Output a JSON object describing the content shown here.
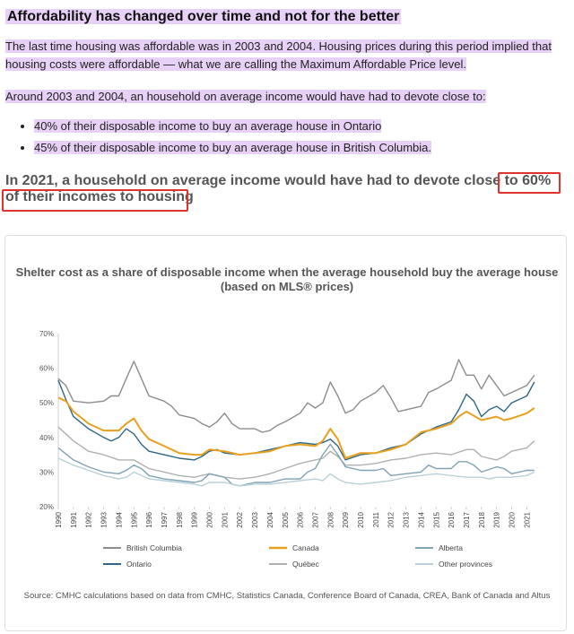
{
  "article": {
    "heading": "Affordability has changed over time and not for the better",
    "paragraph1": "The last time housing was affordable was in 2003 and 2004. Housing prices during this period implied that housing costs were affordable — what we are calling the Maximum Affordable Price level.",
    "paragraph2": "Around 2003 and 2004, an household on average income would have had to devote close to:",
    "bullets": [
      "40% of their disposable income to buy an average house in Ontario",
      "45% of their disposable income to buy an average house in British Columbia."
    ],
    "highlight_statement": "In 2021, a household on average income would have had to devote close to 60% of their incomes to housing"
  },
  "colors": {
    "highlight": "#e7d1f7",
    "annotation_box": "#e0332e"
  },
  "chart_data": {
    "type": "line",
    "title": "Shelter cost as a share of disposable income when the average household buy the average house (based on MLS® prices)",
    "xlabel": "",
    "ylabel": "",
    "x_range": [
      1990,
      2021.75
    ],
    "ylim": [
      20,
      70
    ],
    "y_ticks": [
      "20%",
      "30%",
      "40%",
      "50%",
      "60%",
      "70%"
    ],
    "x_ticks": [
      "1990",
      "1991",
      "1992",
      "1993",
      "1994",
      "1995",
      "1996",
      "1997",
      "1998",
      "1999",
      "2000",
      "2001",
      "2002",
      "2003",
      "2004",
      "2005",
      "2006",
      "2007",
      "2008",
      "2009",
      "2010",
      "2011",
      "2012",
      "2013",
      "2014",
      "2015",
      "2016",
      "2017",
      "2018",
      "2019",
      "2020",
      "2021"
    ],
    "grid": false,
    "legend_position": "bottom",
    "source": "Source: CMHC calculations based on data from CMHC, Statistics Canada, Conference Board of Canada, CREA, Bank of Canada and Altus",
    "series": [
      {
        "name": "British Columbia",
        "color": "#8c8c8c",
        "points": [
          [
            1990,
            57
          ],
          [
            1990.5,
            55
          ],
          [
            1991,
            50.5
          ],
          [
            1992,
            50
          ],
          [
            1993,
            50.5
          ],
          [
            1993.5,
            52
          ],
          [
            1994,
            52
          ],
          [
            1994.5,
            57
          ],
          [
            1995,
            62
          ],
          [
            1995.5,
            57
          ],
          [
            1996,
            52
          ],
          [
            1997,
            50.5
          ],
          [
            1997.5,
            49
          ],
          [
            1998,
            46.5
          ],
          [
            1999,
            45.5
          ],
          [
            1999.5,
            44
          ],
          [
            2000,
            43
          ],
          [
            2000.5,
            44.5
          ],
          [
            2001,
            47
          ],
          [
            2001.5,
            44
          ],
          [
            2002,
            42.5
          ],
          [
            2003,
            42.5
          ],
          [
            2003.5,
            41.5
          ],
          [
            2004,
            42
          ],
          [
            2004.5,
            43.5
          ],
          [
            2005,
            44.5
          ],
          [
            2006,
            47
          ],
          [
            2006.5,
            50
          ],
          [
            2007,
            48.5
          ],
          [
            2007.5,
            50
          ],
          [
            2008,
            56
          ],
          [
            2008.5,
            52
          ],
          [
            2009,
            47
          ],
          [
            2009.5,
            48
          ],
          [
            2010,
            50.5
          ],
          [
            2011,
            53
          ],
          [
            2011.5,
            55
          ],
          [
            2012,
            51.5
          ],
          [
            2012.5,
            47.5
          ],
          [
            2013,
            48
          ],
          [
            2014,
            49
          ],
          [
            2014.5,
            53
          ],
          [
            2015,
            54
          ],
          [
            2016,
            56.5
          ],
          [
            2016.5,
            62.5
          ],
          [
            2017,
            58
          ],
          [
            2017.5,
            58
          ],
          [
            2018,
            54
          ],
          [
            2018.5,
            58
          ],
          [
            2019,
            55
          ],
          [
            2019.5,
            52
          ],
          [
            2020,
            53
          ],
          [
            2021,
            55
          ],
          [
            2021.5,
            58
          ]
        ]
      },
      {
        "name": "Ontario",
        "color": "#2e6683",
        "points": [
          [
            1990,
            56.5
          ],
          [
            1990.5,
            51
          ],
          [
            1991,
            46
          ],
          [
            1992,
            42.5
          ],
          [
            1993,
            40
          ],
          [
            1993.5,
            39
          ],
          [
            1994,
            40
          ],
          [
            1994.5,
            42.5
          ],
          [
            1995,
            41
          ],
          [
            1995.5,
            38
          ],
          [
            1996,
            36
          ],
          [
            1997,
            35
          ],
          [
            1998,
            34
          ],
          [
            1999,
            33.5
          ],
          [
            1999.5,
            34.5
          ],
          [
            2000,
            36
          ],
          [
            2000.5,
            36.5
          ],
          [
            2001,
            35.5
          ],
          [
            2002,
            35
          ],
          [
            2003,
            35.5
          ],
          [
            2004,
            36.5
          ],
          [
            2005,
            37.5
          ],
          [
            2006,
            38.5
          ],
          [
            2007,
            38
          ],
          [
            2007.5,
            38.5
          ],
          [
            2008,
            39.5
          ],
          [
            2008.5,
            37.5
          ],
          [
            2009,
            33.5
          ],
          [
            2010,
            35
          ],
          [
            2011,
            35.5
          ],
          [
            2012,
            37
          ],
          [
            2013,
            38
          ],
          [
            2014,
            41
          ],
          [
            2015,
            43
          ],
          [
            2016,
            44.5
          ],
          [
            2016.5,
            48
          ],
          [
            2017,
            52.5
          ],
          [
            2017.5,
            50.5
          ],
          [
            2018,
            46
          ],
          [
            2018.5,
            48
          ],
          [
            2019,
            49
          ],
          [
            2019.5,
            47.5
          ],
          [
            2020,
            50
          ],
          [
            2021,
            52
          ],
          [
            2021.5,
            56
          ]
        ]
      },
      {
        "name": "Canada",
        "color": "#e8a01e",
        "points": [
          [
            1990,
            51.5
          ],
          [
            1990.5,
            50.5
          ],
          [
            1991,
            47.5
          ],
          [
            1992,
            44
          ],
          [
            1993,
            42
          ],
          [
            1994,
            42
          ],
          [
            1994.5,
            44
          ],
          [
            1995,
            45.5
          ],
          [
            1995.5,
            42
          ],
          [
            1996,
            39.5
          ],
          [
            1997,
            37.5
          ],
          [
            1998,
            35.5
          ],
          [
            1999,
            35
          ],
          [
            1999.5,
            35
          ],
          [
            2000,
            36.5
          ],
          [
            2001,
            36
          ],
          [
            2002,
            35
          ],
          [
            2003,
            35.5
          ],
          [
            2004,
            36
          ],
          [
            2005,
            37.5
          ],
          [
            2006,
            38
          ],
          [
            2007,
            37.5
          ],
          [
            2007.5,
            39
          ],
          [
            2008,
            42.5
          ],
          [
            2008.5,
            39.5
          ],
          [
            2009,
            34
          ],
          [
            2010,
            35.5
          ],
          [
            2011,
            35.5
          ],
          [
            2012,
            36.5
          ],
          [
            2013,
            38
          ],
          [
            2014,
            41.5
          ],
          [
            2015,
            42.5
          ],
          [
            2016,
            44
          ],
          [
            2016.5,
            46
          ],
          [
            2017,
            47.5
          ],
          [
            2018,
            45
          ],
          [
            2019,
            46
          ],
          [
            2019.5,
            45
          ],
          [
            2020,
            45.5
          ],
          [
            2021,
            47
          ],
          [
            2021.5,
            48.5
          ]
        ]
      },
      {
        "name": "Québec",
        "color": "#b0b0b0",
        "points": [
          [
            1990,
            43
          ],
          [
            1991,
            39
          ],
          [
            1992,
            36
          ],
          [
            1993,
            35
          ],
          [
            1994,
            33.5
          ],
          [
            1995,
            33.5
          ],
          [
            1996,
            31
          ],
          [
            1997,
            30
          ],
          [
            1998,
            29
          ],
          [
            1999,
            28.5
          ],
          [
            2000,
            29.5
          ],
          [
            2001,
            28.5
          ],
          [
            2002,
            28
          ],
          [
            2003,
            28.5
          ],
          [
            2004,
            29.5
          ],
          [
            2005,
            31
          ],
          [
            2006,
            32.5
          ],
          [
            2007,
            33.5
          ],
          [
            2007.5,
            34
          ],
          [
            2008,
            36
          ],
          [
            2008.5,
            34.5
          ],
          [
            2009,
            32
          ],
          [
            2010,
            32
          ],
          [
            2011,
            32.5
          ],
          [
            2012,
            33.5
          ],
          [
            2013,
            34
          ],
          [
            2014,
            35
          ],
          [
            2015,
            35.5
          ],
          [
            2016,
            35
          ],
          [
            2017,
            36.5
          ],
          [
            2017.5,
            36.5
          ],
          [
            2018,
            34.5
          ],
          [
            2019,
            33.5
          ],
          [
            2019.5,
            34.5
          ],
          [
            2020,
            36
          ],
          [
            2021,
            37
          ],
          [
            2021.5,
            39
          ]
        ]
      },
      {
        "name": "Alberta",
        "color": "#7fa2b4",
        "points": [
          [
            1990,
            37
          ],
          [
            1991,
            33.5
          ],
          [
            1992,
            31.5
          ],
          [
            1993,
            30
          ],
          [
            1994,
            29.5
          ],
          [
            1994.5,
            30.5
          ],
          [
            1995,
            32
          ],
          [
            1995.5,
            31
          ],
          [
            1996,
            29
          ],
          [
            1997,
            28
          ],
          [
            1998,
            27.5
          ],
          [
            1999,
            27
          ],
          [
            1999.5,
            27.5
          ],
          [
            2000,
            29.5
          ],
          [
            2001,
            28.5
          ],
          [
            2001.5,
            26.5
          ],
          [
            2002,
            26
          ],
          [
            2003,
            27
          ],
          [
            2004,
            27
          ],
          [
            2005,
            28
          ],
          [
            2006,
            28
          ],
          [
            2006.5,
            30
          ],
          [
            2007,
            31
          ],
          [
            2007.5,
            35
          ],
          [
            2008,
            38
          ],
          [
            2008.5,
            35
          ],
          [
            2009,
            31.5
          ],
          [
            2010,
            30.5
          ],
          [
            2011,
            30.5
          ],
          [
            2011.5,
            31
          ],
          [
            2012,
            29
          ],
          [
            2013,
            29.5
          ],
          [
            2014,
            30
          ],
          [
            2014.5,
            32
          ],
          [
            2015,
            31
          ],
          [
            2016,
            31
          ],
          [
            2016.5,
            33
          ],
          [
            2017,
            33
          ],
          [
            2017.5,
            32
          ],
          [
            2018,
            30
          ],
          [
            2019,
            31.5
          ],
          [
            2019.5,
            31
          ],
          [
            2020,
            29.5
          ],
          [
            2021,
            30.5
          ],
          [
            2021.5,
            30.5
          ]
        ]
      },
      {
        "name": "Other provinces",
        "color": "#b8d0d8",
        "points": [
          [
            1990,
            34
          ],
          [
            1991,
            32
          ],
          [
            1992,
            30.5
          ],
          [
            1993,
            29
          ],
          [
            1994,
            28
          ],
          [
            1994.5,
            28.5
          ],
          [
            1995,
            30
          ],
          [
            1995.5,
            29
          ],
          [
            1996,
            28
          ],
          [
            1997,
            27.5
          ],
          [
            1998,
            27
          ],
          [
            1999,
            26.5
          ],
          [
            1999.5,
            26
          ],
          [
            2000,
            27
          ],
          [
            2001,
            27
          ],
          [
            2002,
            26
          ],
          [
            2003,
            26.5
          ],
          [
            2004,
            26.5
          ],
          [
            2005,
            27
          ],
          [
            2006,
            27.5
          ],
          [
            2007,
            28
          ],
          [
            2007.5,
            27.5
          ],
          [
            2008,
            29.5
          ],
          [
            2008.5,
            28
          ],
          [
            2009,
            27
          ],
          [
            2010,
            26.5
          ],
          [
            2011,
            27
          ],
          [
            2012,
            27.5
          ],
          [
            2013,
            28.5
          ],
          [
            2014,
            29
          ],
          [
            2015,
            29.5
          ],
          [
            2016,
            29
          ],
          [
            2017,
            28.5
          ],
          [
            2018,
            28.5
          ],
          [
            2018.5,
            28
          ],
          [
            2019,
            28.5
          ],
          [
            2020,
            28.5
          ],
          [
            2021,
            29
          ],
          [
            2021.5,
            30
          ]
        ]
      }
    ]
  }
}
